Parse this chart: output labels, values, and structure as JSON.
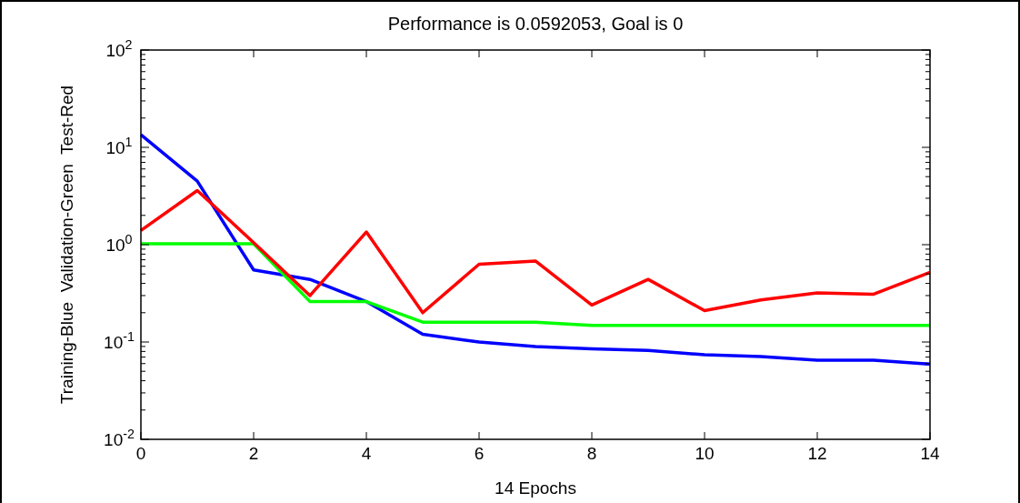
{
  "chart_data": {
    "type": "line",
    "title": "Performance is 0.0592053, Goal is 0",
    "xlabel": "14 Epochs",
    "ylabel": "Training-Blue  Validation-Green  Test-Red",
    "log": "y",
    "grid": false,
    "marker": "none",
    "line_style": "solid",
    "x": [
      0,
      1,
      2,
      3,
      4,
      5,
      6,
      7,
      8,
      9,
      10,
      11,
      12,
      13,
      14
    ],
    "xlim": [
      0,
      14
    ],
    "xticks": [
      0,
      2,
      4,
      6,
      8,
      10,
      12,
      14
    ],
    "ylim": [
      0.01,
      100
    ],
    "yticks": [
      {
        "value": 0.01,
        "label": "10$^{-2}$"
      },
      {
        "value": 0.1,
        "label": "10$^{-1}$"
      },
      {
        "value": 1,
        "label": "10$^{0}$"
      },
      {
        "value": 10,
        "label": "10$^{1}$"
      },
      {
        "value": 100,
        "label": "10$^{2}$"
      }
    ],
    "series": [
      {
        "color": "#0000ff",
        "values": [
          13.5,
          4.5,
          0.55,
          0.44,
          0.26,
          0.12,
          0.1,
          0.09,
          0.085,
          0.082,
          0.074,
          0.071,
          0.065,
          0.065,
          0.0592
        ]
      },
      {
        "color": "#00ff00",
        "values": [
          1.02,
          1.02,
          1.02,
          0.26,
          0.26,
          0.16,
          0.16,
          0.16,
          0.148,
          0.148,
          0.148,
          0.148,
          0.148,
          0.148,
          0.148
        ]
      },
      {
        "color": "#ff0000",
        "values": [
          1.4,
          3.6,
          1.05,
          0.3,
          1.35,
          0.2,
          0.63,
          0.68,
          0.24,
          0.44,
          0.21,
          0.27,
          0.32,
          0.31,
          0.52
        ]
      }
    ]
  }
}
